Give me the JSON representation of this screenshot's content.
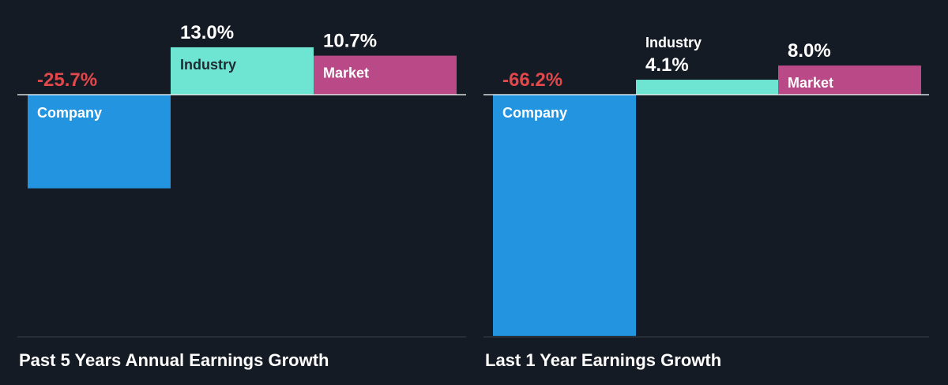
{
  "colors": {
    "background": "#151b24",
    "company": "#2394e0",
    "industry": "#6ee5d2",
    "market": "#b94a87",
    "negative_value": "#e2474b",
    "positive_value": "#ffffff",
    "axis": "#ffffff",
    "divider": "#3a4049"
  },
  "chart_data": [
    {
      "type": "bar",
      "title": "Past 5 Years Annual Earnings Growth",
      "categories": [
        "Company",
        "Industry",
        "Market"
      ],
      "values": [
        -25.7,
        13.0,
        10.7
      ],
      "value_labels": [
        "-25.7%",
        "13.0%",
        "10.7%"
      ],
      "unit": "%"
    },
    {
      "type": "bar",
      "title": "Last 1 Year Earnings Growth",
      "categories": [
        "Company",
        "Industry",
        "Market"
      ],
      "values": [
        -66.2,
        4.1,
        8.0
      ],
      "value_labels": [
        "-66.2%",
        "4.1%",
        "8.0%"
      ],
      "unit": "%"
    }
  ]
}
